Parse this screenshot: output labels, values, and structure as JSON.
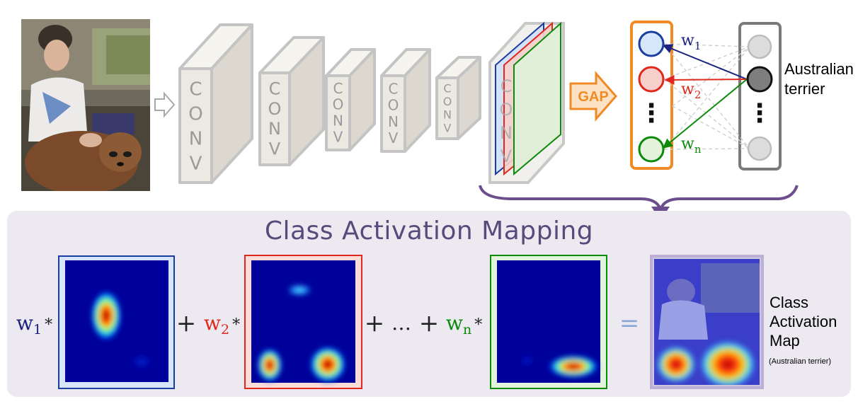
{
  "title": "Class Activation Mapping",
  "conv_label": "CONV",
  "conv_letters": [
    "C",
    "O",
    "N",
    "V"
  ],
  "gap_label": "GAP",
  "weights": {
    "w1": {
      "base": "w",
      "sub": "1",
      "color": "#1a237e"
    },
    "w2": {
      "base": "w",
      "sub": "2",
      "color": "#e0281e"
    },
    "wn": {
      "base": "w",
      "sub": "n",
      "color": "#0b8a0b"
    }
  },
  "vertical_dots": "⋮",
  "output_class": {
    "line1": "Australian",
    "line2": "terrier"
  },
  "equation": {
    "multiply": "*",
    "plus": "+",
    "ellipsis": "…",
    "equals": "="
  },
  "cam_label": {
    "line1": "Class",
    "line2": "Activation",
    "line3": "Map",
    "subtitle": "(Australian terrier)"
  },
  "colors": {
    "panel_bg": "#ece9f0",
    "title": "#5a4a7c",
    "arrow": "#6d4e8c",
    "gap": "#f08a24",
    "map_blue": "#00009a",
    "conv_face": "#ece9e2"
  },
  "icons": [
    "input-photo",
    "arrow-right-icon",
    "gap-arrow-icon",
    "curly-brace",
    "down-arrow-icon"
  ]
}
